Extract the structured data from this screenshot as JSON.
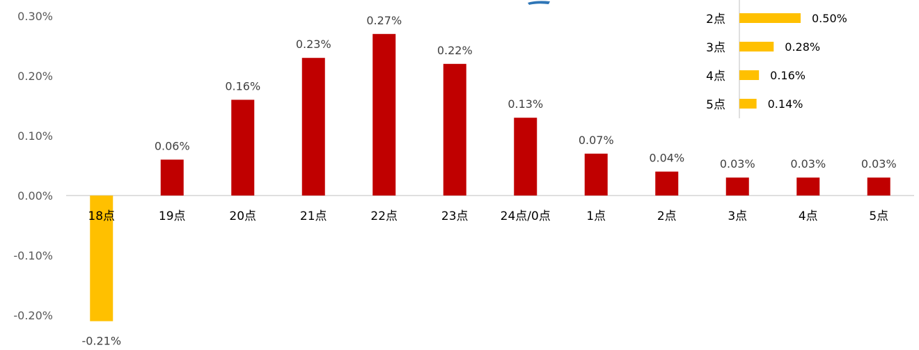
{
  "colors": {
    "positive_bar": "#C00000",
    "negative_bar": "#FFC000",
    "inset_bar": "#FFC000",
    "axis": "#BFBFBF",
    "inset_logo": "#2E75B6"
  },
  "chart_data": [
    {
      "type": "bar",
      "title": "",
      "xlabel": "",
      "ylabel": "",
      "ylim": [
        -0.25,
        0.3
      ],
      "y_ticks": [
        "0.30%",
        "0.20%",
        "0.10%",
        "0.00%",
        "-0.10%",
        "-0.20%"
      ],
      "y_tick_values": [
        0.3,
        0.2,
        0.1,
        0.0,
        -0.1,
        -0.2
      ],
      "categories": [
        "18点",
        "19点",
        "20点",
        "21点",
        "22点",
        "23点",
        "24点/0点",
        "1点",
        "2点",
        "3点",
        "4点",
        "5点"
      ],
      "values": [
        -0.21,
        0.06,
        0.16,
        0.23,
        0.27,
        0.22,
        0.13,
        0.07,
        0.04,
        0.03,
        0.03,
        0.03
      ],
      "data_labels": [
        "-0.21%",
        "0.06%",
        "0.16%",
        "0.23%",
        "0.27%",
        "0.22%",
        "0.13%",
        "0.07%",
        "0.04%",
        "0.03%",
        "0.03%",
        "0.03%"
      ],
      "grid": false,
      "legend": "none"
    },
    {
      "type": "bar",
      "orientation": "horizontal",
      "title": "",
      "categories": [
        "2点",
        "3点",
        "4点",
        "5点"
      ],
      "values": [
        0.5,
        0.28,
        0.16,
        0.14
      ],
      "data_labels": [
        "0.50%",
        "0.28%",
        "0.16%",
        "0.14%"
      ],
      "grid": false,
      "legend": "none"
    }
  ]
}
